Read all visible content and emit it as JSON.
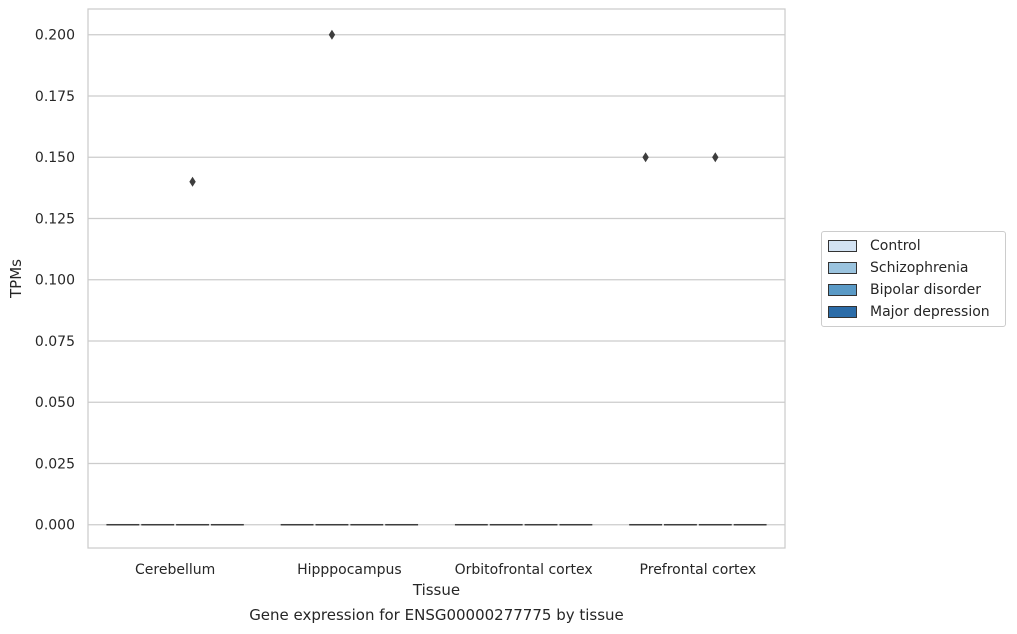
{
  "chart_data": {
    "type": "box",
    "xlabel": "Tissue",
    "ylabel": "TPMs",
    "caption": "Gene expression for ENSG00000277775 by tissue",
    "categories": [
      "Cerebellum",
      "Hipppocampus",
      "Orbitofrontal cortex",
      "Prefrontal cortex"
    ],
    "yticks": [
      "0.000",
      "0.025",
      "0.050",
      "0.075",
      "0.100",
      "0.125",
      "0.150",
      "0.175",
      "0.200"
    ],
    "ylim": [
      -0.0095,
      0.2105
    ],
    "grid": true,
    "legend_position": "right",
    "series": [
      {
        "name": "Control",
        "color": "#d3e3f3",
        "boxes": [
          {
            "q1": 0,
            "median": 0,
            "q3": 0,
            "whislo": 0,
            "whishi": 0
          },
          {
            "q1": 0,
            "median": 0,
            "q3": 0,
            "whislo": 0,
            "whishi": 0
          },
          {
            "q1": 0,
            "median": 0,
            "q3": 0,
            "whislo": 0,
            "whishi": 0
          },
          {
            "q1": 0,
            "median": 0,
            "q3": 0,
            "whislo": 0,
            "whishi": 0
          }
        ],
        "outliers": [
          [],
          [],
          [],
          [
            0.15
          ]
        ]
      },
      {
        "name": "Schizophrenia",
        "color": "#9ac3de",
        "boxes": [
          {
            "q1": 0,
            "median": 0,
            "q3": 0,
            "whislo": 0,
            "whishi": 0
          },
          {
            "q1": 0,
            "median": 0,
            "q3": 0,
            "whislo": 0,
            "whishi": 0
          },
          {
            "q1": 0,
            "median": 0,
            "q3": 0,
            "whislo": 0,
            "whishi": 0
          },
          {
            "q1": 0,
            "median": 0,
            "q3": 0,
            "whislo": 0,
            "whishi": 0
          }
        ],
        "outliers": [
          [],
          [
            0.2
          ],
          [],
          []
        ]
      },
      {
        "name": "Bipolar disorder",
        "color": "#5a9ac6",
        "boxes": [
          {
            "q1": 0,
            "median": 0,
            "q3": 0,
            "whislo": 0,
            "whishi": 0
          },
          {
            "q1": 0,
            "median": 0,
            "q3": 0,
            "whislo": 0,
            "whishi": 0
          },
          {
            "q1": 0,
            "median": 0,
            "q3": 0,
            "whislo": 0,
            "whishi": 0
          },
          {
            "q1": 0,
            "median": 0,
            "q3": 0,
            "whislo": 0,
            "whishi": 0
          }
        ],
        "outliers": [
          [
            0.14
          ],
          [],
          [],
          [
            0.15
          ]
        ]
      },
      {
        "name": "Major depression",
        "color": "#2b6ca8",
        "boxes": [
          {
            "q1": 0,
            "median": 0,
            "q3": 0,
            "whislo": 0,
            "whishi": 0
          },
          {
            "q1": 0,
            "median": 0,
            "q3": 0,
            "whislo": 0,
            "whishi": 0
          },
          {
            "q1": 0,
            "median": 0,
            "q3": 0,
            "whislo": 0,
            "whishi": 0
          },
          {
            "q1": 0,
            "median": 0,
            "q3": 0,
            "whislo": 0,
            "whishi": 0
          }
        ],
        "outliers": [
          [],
          [],
          [],
          []
        ]
      }
    ]
  }
}
